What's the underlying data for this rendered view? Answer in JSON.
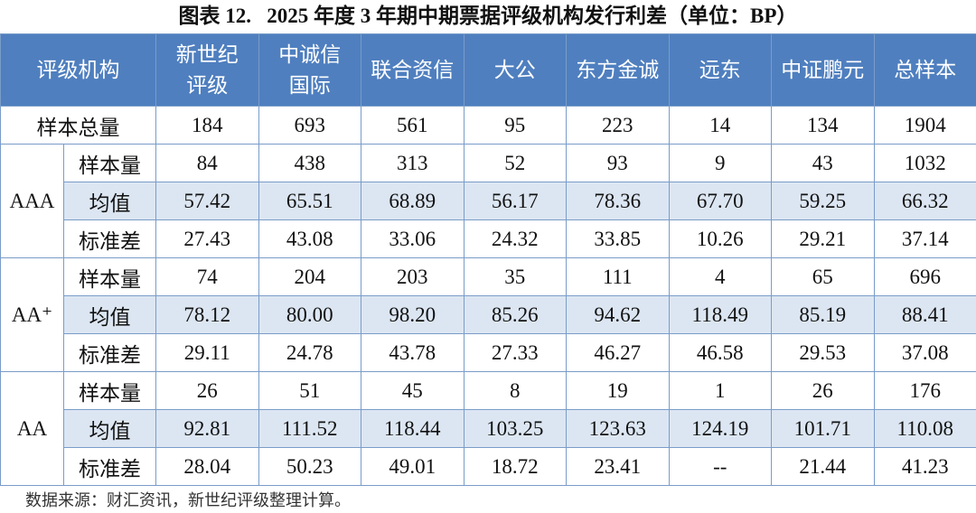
{
  "header": {
    "title": "图表 12.   2025 年度 3 年期中期票据评级机构发行利差（单位：BP）"
  },
  "table": {
    "columns": [
      [
        "评级机构"
      ],
      [
        "新世纪",
        "评级"
      ],
      [
        "中诚信",
        "国际"
      ],
      [
        "联合资信"
      ],
      [
        "大公"
      ],
      [
        "东方金诚"
      ],
      [
        "远东"
      ],
      [
        "中证鹏元"
      ],
      [
        "总样本"
      ]
    ],
    "total_row": {
      "label": "样本总量",
      "values": [
        "184",
        "693",
        "561",
        "95",
        "223",
        "14",
        "134",
        "1904"
      ]
    },
    "groups": [
      {
        "label": "AAA",
        "rows": [
          {
            "label": "样本量",
            "values": [
              "84",
              "438",
              "313",
              "52",
              "93",
              "9",
              "43",
              "1032"
            ]
          },
          {
            "label": "均值",
            "values": [
              "57.42",
              "65.51",
              "68.89",
              "56.17",
              "78.36",
              "67.70",
              "59.25",
              "66.32"
            ]
          },
          {
            "label": "标准差",
            "values": [
              "27.43",
              "43.08",
              "33.06",
              "24.32",
              "33.85",
              "10.26",
              "29.21",
              "37.14"
            ]
          }
        ]
      },
      {
        "label": "AA⁺",
        "rows": [
          {
            "label": "样本量",
            "values": [
              "74",
              "204",
              "203",
              "35",
              "111",
              "4",
              "65",
              "696"
            ]
          },
          {
            "label": "均值",
            "values": [
              "78.12",
              "80.00",
              "98.20",
              "85.26",
              "94.62",
              "118.49",
              "85.19",
              "88.41"
            ]
          },
          {
            "label": "标准差",
            "values": [
              "29.11",
              "24.78",
              "43.78",
              "27.33",
              "46.27",
              "46.58",
              "29.53",
              "37.08"
            ]
          }
        ]
      },
      {
        "label": "AA",
        "rows": [
          {
            "label": "样本量",
            "values": [
              "26",
              "51",
              "45",
              "8",
              "19",
              "1",
              "26",
              "176"
            ]
          },
          {
            "label": "均值",
            "values": [
              "92.81",
              "111.52",
              "118.44",
              "103.25",
              "123.63",
              "124.19",
              "101.71",
              "110.08"
            ]
          },
          {
            "label": "标准差",
            "values": [
              "28.04",
              "50.23",
              "49.01",
              "18.72",
              "23.41",
              "--",
              "21.44",
              "41.23"
            ]
          }
        ]
      }
    ]
  },
  "source": "数据来源：财汇资讯，新世纪评级整理计算。"
}
